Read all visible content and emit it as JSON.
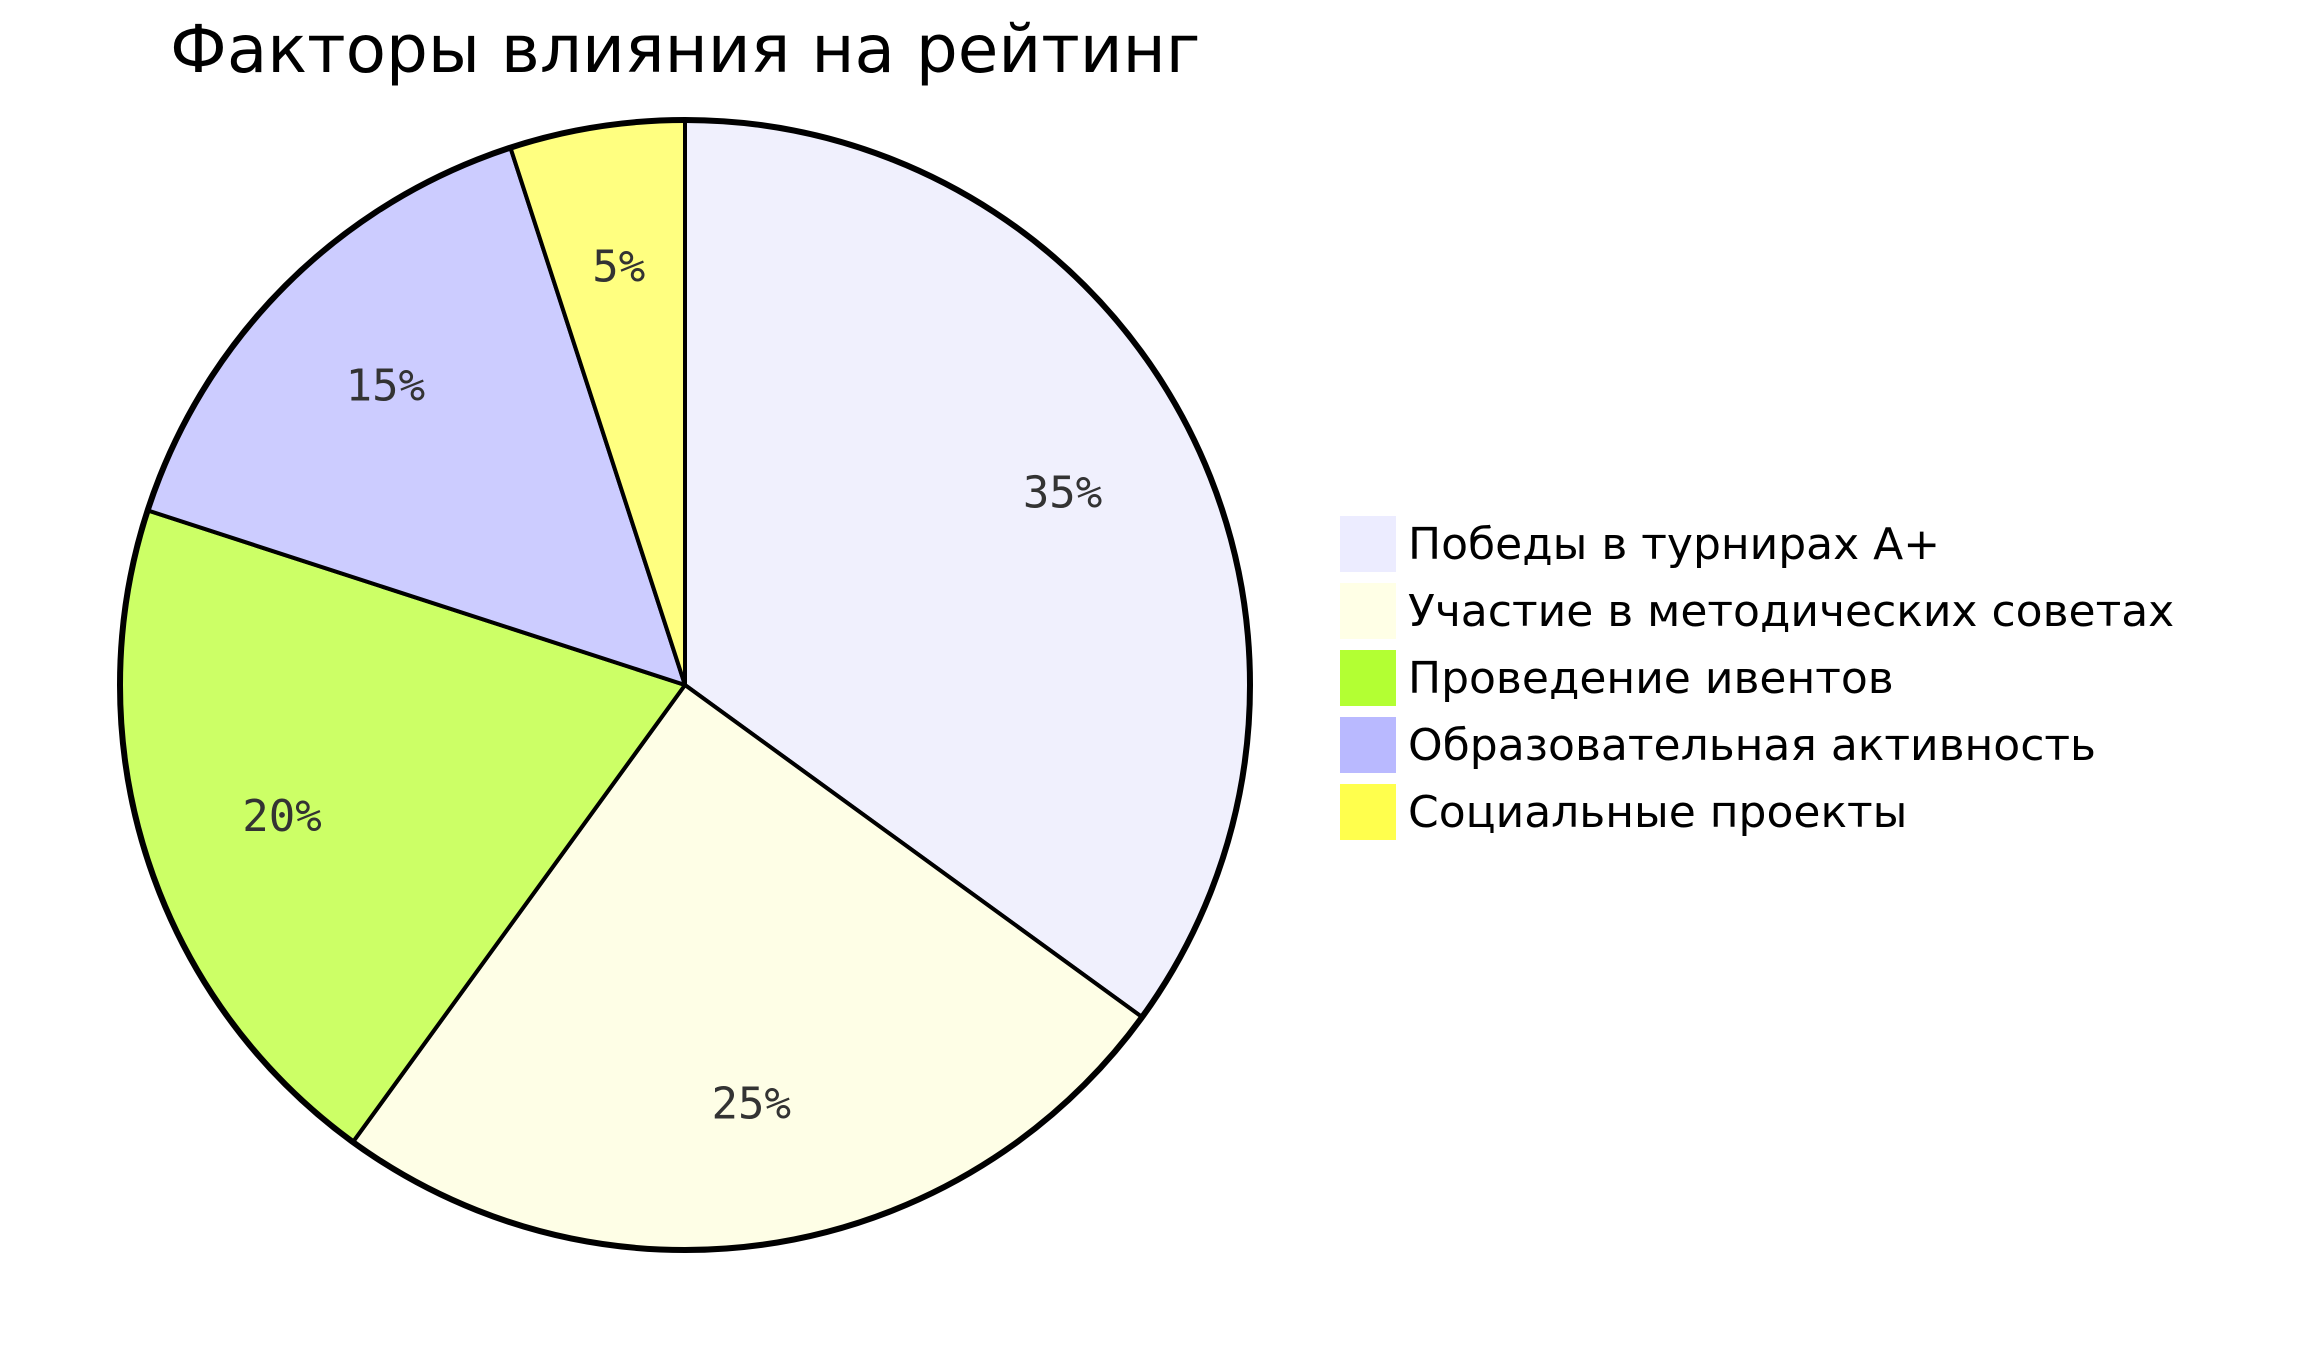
{
  "chart_data": {
    "type": "pie",
    "title": "Факторы влияния на рейтинг",
    "slices": [
      {
        "label": "Победы в турнирах A+",
        "value": 35,
        "value_label": "35%",
        "color": "#f0f0fd"
      },
      {
        "label": "Участие в методических советах",
        "value": 25,
        "value_label": "25%",
        "color": "#fefee6"
      },
      {
        "label": "Проведение ивентов",
        "value": 20,
        "value_label": "20%",
        "color": "#ccff66"
      },
      {
        "label": "Образовательная активность",
        "value": 15,
        "value_label": "15%",
        "color": "#ccccff"
      },
      {
        "label": "Социальные проекты",
        "value": 5,
        "value_label": "5%",
        "color": "#ffff80"
      }
    ],
    "legend_placement": "right",
    "legend_swatch_colors": [
      "#ececff",
      "#ffffe6",
      "#b3ff33",
      "#b9b9ff",
      "#ffff4d"
    ],
    "stroke_color": "#000000"
  }
}
